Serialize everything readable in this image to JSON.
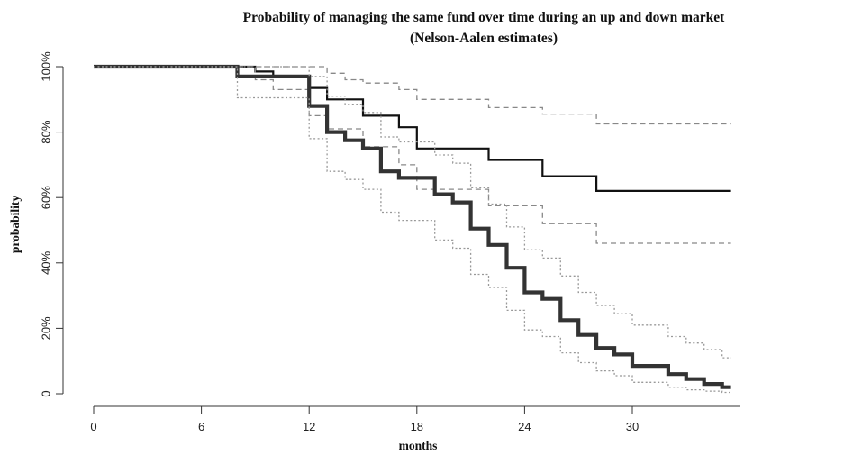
{
  "chart_data": {
    "type": "line",
    "step": true,
    "title": "Probability of managing the same fund over time during an up and down market",
    "subtitle": "(Nelson-Aalen estimates)",
    "xlabel": "months",
    "ylabel": "probability",
    "xlim": [
      0,
      35.5
    ],
    "ylim": [
      0,
      1
    ],
    "x_ticks": [
      0,
      6,
      12,
      18,
      24,
      30
    ],
    "x_tick_labels": [
      "0",
      "6",
      "12",
      "18",
      "24",
      "30"
    ],
    "y_ticks": [
      0,
      0.2,
      0.4,
      0.6,
      0.8,
      1.0
    ],
    "y_tick_labels": [
      "0",
      "20%",
      "40%",
      "60%",
      "80%",
      "100%"
    ],
    "grid": false,
    "series": [
      {
        "style": "thin-solid",
        "color": "#111111",
        "x": [
          0,
          8,
          9,
          10,
          12,
          13,
          15,
          17,
          18,
          22,
          25,
          28,
          35.5
        ],
        "y": [
          1.0,
          1.0,
          0.985,
          0.97,
          0.935,
          0.9,
          0.85,
          0.815,
          0.75,
          0.715,
          0.665,
          0.62,
          0.62
        ]
      },
      {
        "style": "thin-dashed",
        "color": "#888888",
        "x": [
          0,
          8,
          9,
          10,
          12,
          13,
          14,
          15,
          17,
          18,
          22,
          25,
          28,
          35.5
        ],
        "y": [
          1.0,
          1.0,
          1.0,
          1.0,
          1.0,
          0.98,
          0.96,
          0.95,
          0.93,
          0.9,
          0.875,
          0.855,
          0.825,
          0.825
        ]
      },
      {
        "style": "thin-dashed",
        "color": "#888888",
        "x": [
          0,
          8,
          9,
          10,
          12,
          13,
          15,
          17,
          18,
          22,
          25,
          28,
          35.5
        ],
        "y": [
          1.0,
          1.0,
          0.96,
          0.93,
          0.85,
          0.81,
          0.755,
          0.7,
          0.625,
          0.575,
          0.52,
          0.46,
          0.46
        ]
      },
      {
        "style": "thick-solid",
        "color": "#333333",
        "x": [
          0,
          8,
          12,
          13,
          14,
          15,
          16,
          17,
          19,
          20,
          21,
          22,
          23,
          24,
          25,
          26,
          27,
          28,
          29,
          30,
          32,
          33,
          34,
          35,
          35.5
        ],
        "y": [
          1.0,
          0.97,
          0.88,
          0.8,
          0.775,
          0.75,
          0.68,
          0.66,
          0.61,
          0.585,
          0.505,
          0.455,
          0.385,
          0.31,
          0.29,
          0.225,
          0.18,
          0.14,
          0.12,
          0.085,
          0.06,
          0.045,
          0.03,
          0.02,
          0.02
        ]
      },
      {
        "style": "thin-dotted",
        "color": "#999999",
        "x": [
          0,
          8,
          12,
          13,
          14,
          15,
          16,
          17,
          19,
          20,
          21,
          22,
          23,
          24,
          25,
          26,
          27,
          28,
          29,
          30,
          32,
          33,
          34,
          35,
          35.5
        ],
        "y": [
          1.0,
          1.0,
          0.97,
          0.91,
          0.885,
          0.86,
          0.785,
          0.77,
          0.73,
          0.705,
          0.63,
          0.58,
          0.51,
          0.44,
          0.415,
          0.36,
          0.31,
          0.27,
          0.245,
          0.21,
          0.175,
          0.155,
          0.135,
          0.11,
          0.11
        ]
      },
      {
        "style": "thin-dotted",
        "color": "#999999",
        "x": [
          0,
          8,
          12,
          13,
          14,
          15,
          16,
          17,
          19,
          20,
          21,
          22,
          23,
          24,
          25,
          26,
          27,
          28,
          29,
          30,
          32,
          33,
          34,
          35,
          35.5
        ],
        "y": [
          1.0,
          0.905,
          0.78,
          0.68,
          0.655,
          0.625,
          0.555,
          0.53,
          0.47,
          0.445,
          0.365,
          0.325,
          0.255,
          0.195,
          0.175,
          0.125,
          0.095,
          0.07,
          0.055,
          0.035,
          0.02,
          0.012,
          0.008,
          0.004,
          0.004
        ]
      }
    ]
  }
}
